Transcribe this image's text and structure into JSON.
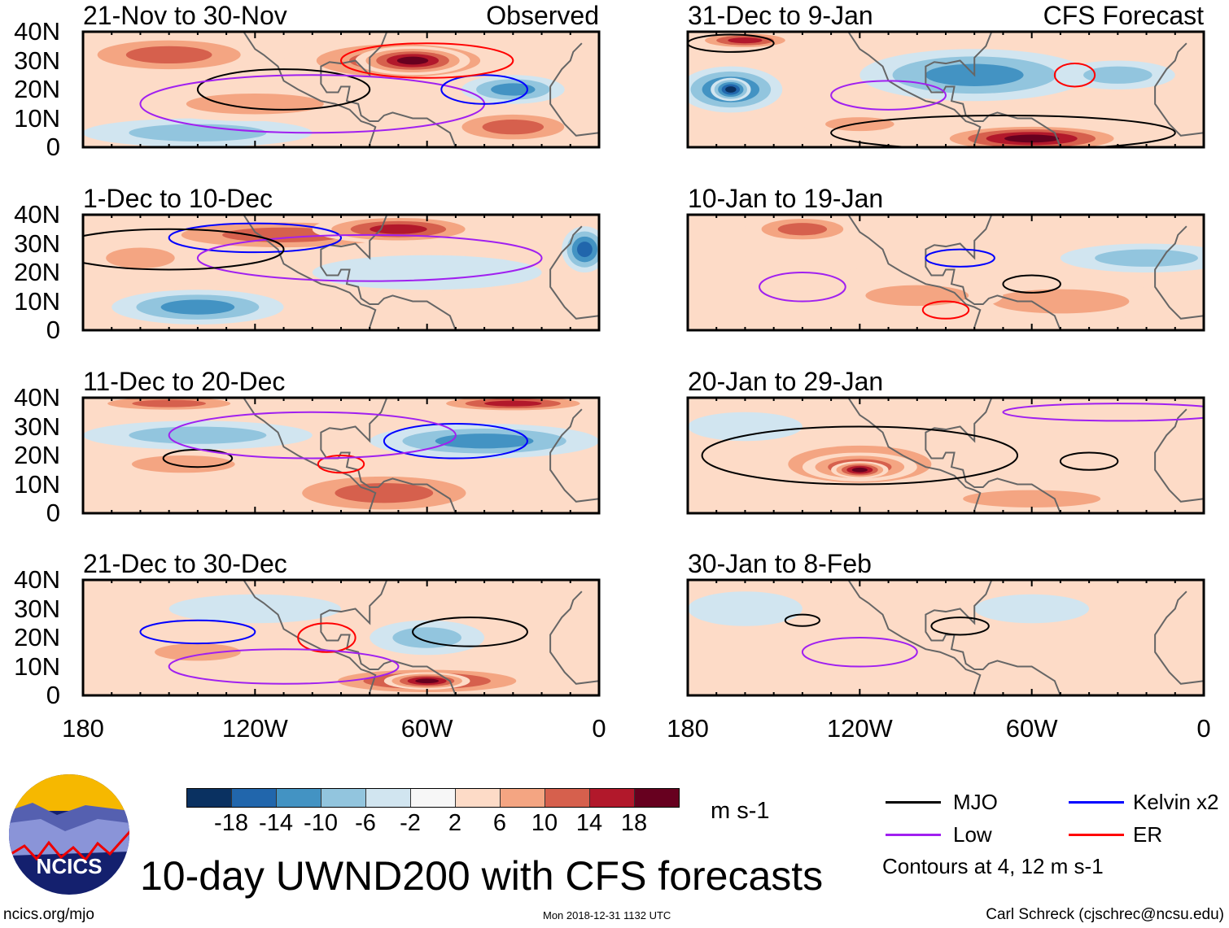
{
  "panels": [
    {
      "title": "21-Nov to 30-Nov",
      "tag": "Observed"
    },
    {
      "title": "1-Dec to 10-Dec"
    },
    {
      "title": "11-Dec to 20-Dec"
    },
    {
      "title": "21-Dec to 30-Dec"
    },
    {
      "title": "31-Dec to 9-Jan",
      "tag": "CFS Forecast"
    },
    {
      "title": "10-Jan to 19-Jan"
    },
    {
      "title": "20-Jan to 29-Jan"
    },
    {
      "title": "30-Jan to 8-Feb"
    }
  ],
  "y_ticks": [
    "40N",
    "30N",
    "20N",
    "10N",
    "0"
  ],
  "x_ticks": [
    "180",
    "120W",
    "60W",
    "0"
  ],
  "colorbar": {
    "colors": [
      "#0a3161",
      "#2166ac",
      "#4393c3",
      "#92c5de",
      "#d1e5f0",
      "#f7f7f7",
      "#fddbc7",
      "#f4a582",
      "#d6604d",
      "#b2182b",
      "#67001f"
    ],
    "labels": [
      "-18",
      "-14",
      "-10",
      "-6",
      "-2",
      "2",
      "6",
      "10",
      "14",
      "18"
    ],
    "units": "m s-1"
  },
  "legend": {
    "items": [
      {
        "label": "MJO",
        "color": "#000000"
      },
      {
        "label": "Kelvin x2",
        "color": "#0000ff"
      },
      {
        "label": "Low",
        "color": "#a020f0"
      },
      {
        "label": "ER",
        "color": "#ff0000"
      }
    ],
    "note": "Contours at 4, 12 m s-1"
  },
  "logo": {
    "text": "NCICS"
  },
  "title": "10-day UWND200 with CFS forecasts",
  "footer": {
    "left": "ncics.org/mjo",
    "center": "Mon 2018-12-31 1132 UTC",
    "right": "Carl Schreck (cjschrec@ncsu.edu)"
  }
}
